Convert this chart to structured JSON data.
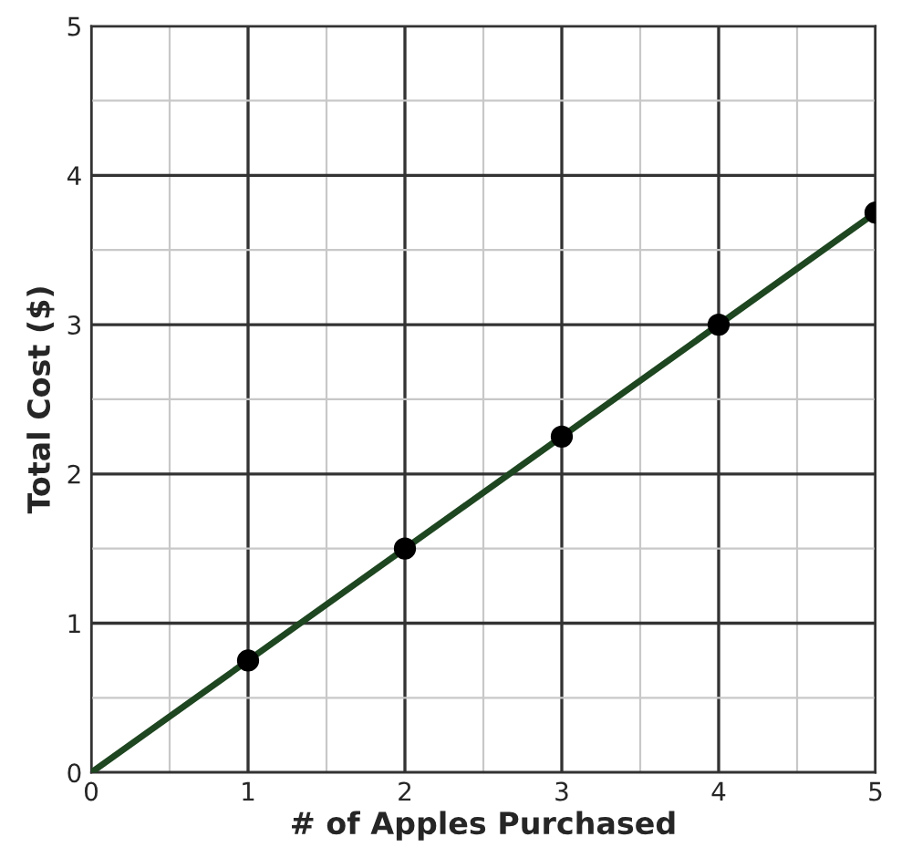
{
  "chart_data": {
    "type": "line",
    "xlabel": "# of Apples Purchased",
    "ylabel": "Total Cost ($)",
    "xlim": [
      0,
      5
    ],
    "ylim": [
      0,
      5
    ],
    "xticks": [
      0,
      1,
      2,
      3,
      4,
      5
    ],
    "yticks": [
      0,
      1,
      2,
      3,
      4,
      5
    ],
    "grid": true,
    "legend": false,
    "series": [
      {
        "color": "#1e4620",
        "marker": "none",
        "line_style": "solid",
        "x": [
          0,
          5
        ],
        "values": [
          0,
          3.75
        ]
      },
      {
        "type": "scatter",
        "color": "#000000",
        "marker": "circle",
        "x": [
          1,
          2,
          3,
          4,
          5
        ],
        "values": [
          0.75,
          1.5,
          2.25,
          3,
          3.75
        ]
      }
    ]
  }
}
